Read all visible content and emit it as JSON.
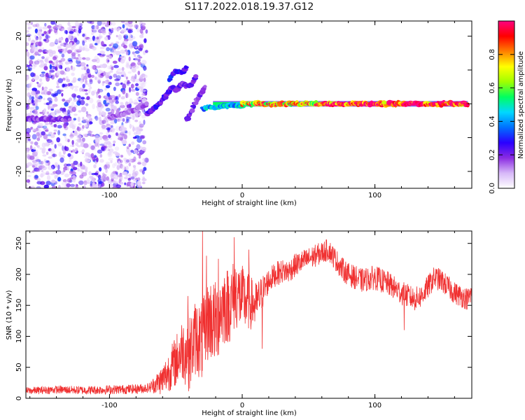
{
  "figure_title": "S117.2022.018.19.37.G12",
  "chart_data": [
    {
      "type": "heatmap",
      "xlabel": "Height of straight line (km)",
      "ylabel": "Frequency (Hz)",
      "xlim": [
        -163,
        173
      ],
      "ylim": [
        -25,
        24.5
      ],
      "xticks": [
        -100,
        0,
        100
      ],
      "yticks": [
        -20,
        -10,
        0,
        10,
        20
      ],
      "colorbar": {
        "label": "Normalized spectral amplitude",
        "range": [
          0,
          1
        ],
        "ticks": [
          "0.0",
          "0.2",
          "0.4",
          "0.6",
          "0.8"
        ],
        "colors": [
          "#ffffff",
          "#d7b8f8",
          "#8a2be2",
          "#2a00ff",
          "#0070ff",
          "#00d8ff",
          "#00ff60",
          "#a0ff00",
          "#ffff00",
          "#ff8000",
          "#ff0000",
          "#ff0080"
        ]
      },
      "carrier_line": {
        "from_km": -22,
        "to_km": 170,
        "frequency_hz": 0
      },
      "noise_region": {
        "from_km": -163,
        "to_km": -72,
        "frequency_range_hz": [
          -25,
          24.5
        ]
      },
      "tracks": [
        {
          "x": [
            -163,
            -150,
            -140,
            -130
          ],
          "y": [
            -4.5,
            -4.5,
            -4.5,
            -4.5
          ],
          "level": 0.18
        },
        {
          "x": [
            -100,
            -90,
            -80,
            -72
          ],
          "y": [
            -4,
            -3,
            -1.5,
            0
          ],
          "level": 0.15
        },
        {
          "x": [
            -72,
            -65,
            -58,
            -52
          ],
          "y": [
            -3,
            -1,
            2,
            5
          ],
          "level": 0.25
        },
        {
          "x": [
            -55,
            -50,
            -46,
            -42
          ],
          "y": [
            7,
            10,
            9,
            11
          ],
          "level": 0.28
        },
        {
          "x": [
            -50,
            -45,
            -40,
            -35
          ],
          "y": [
            4,
            6,
            5,
            8
          ],
          "level": 0.22
        },
        {
          "x": [
            -42,
            -38,
            -33,
            -28
          ],
          "y": [
            -5,
            -2,
            2,
            5
          ],
          "level": 0.2
        },
        {
          "x": [
            -30,
            -20,
            -10,
            0
          ],
          "y": [
            -1.5,
            -1,
            -0.5,
            -0.5
          ],
          "level": 0.45
        },
        {
          "x": [
            0,
            20,
            40,
            60
          ],
          "y": [
            0,
            0,
            0,
            0
          ],
          "level": 0.75
        },
        {
          "x": [
            60,
            100,
            140,
            170
          ],
          "y": [
            0,
            0,
            0,
            0
          ],
          "level": 0.95
        }
      ]
    },
    {
      "type": "line",
      "xlabel": "Height of straight line (km)",
      "ylabel": "SNR (10 * v/v)",
      "xlim": [
        -163,
        173
      ],
      "ylim": [
        0,
        270
      ],
      "xticks": [
        -100,
        0,
        100
      ],
      "yticks": [
        0,
        50,
        100,
        150,
        200,
        250
      ],
      "color": "#f03030",
      "envelope": {
        "x": [
          -163,
          -140,
          -120,
          -100,
          -80,
          -70,
          -60,
          -55,
          -50,
          -45,
          -40,
          -35,
          -30,
          -25,
          -20,
          -15,
          -10,
          -5,
          0,
          5,
          10,
          15,
          20,
          25,
          30,
          35,
          40,
          45,
          50,
          55,
          60,
          65,
          70,
          75,
          80,
          90,
          100,
          110,
          120,
          125,
          130,
          135,
          140,
          145,
          150,
          155,
          160,
          165,
          170,
          173
        ],
        "y": [
          12,
          14,
          13,
          14,
          15,
          17,
          30,
          45,
          60,
          80,
          70,
          100,
          90,
          130,
          120,
          150,
          150,
          170,
          160,
          155,
          150,
          170,
          190,
          200,
          205,
          205,
          215,
          220,
          225,
          230,
          235,
          240,
          225,
          210,
          200,
          190,
          195,
          185,
          170,
          165,
          160,
          165,
          180,
          195,
          190,
          180,
          170,
          165,
          160,
          170
        ]
      },
      "noise_amplitude": {
        "x": [
          -163,
          -70,
          -60,
          -40,
          -20,
          0,
          20,
          60,
          100,
          173
        ],
        "y": [
          6,
          8,
          25,
          60,
          70,
          55,
          20,
          18,
          20,
          18
        ]
      },
      "spikes": [
        {
          "x": -30,
          "y": 270
        },
        {
          "x": -41,
          "y": 165
        },
        {
          "x": -27,
          "y": 230
        },
        {
          "x": -18,
          "y": 225
        },
        {
          "x": -6,
          "y": 260
        },
        {
          "x": 5,
          "y": 240
        },
        {
          "x": 15,
          "y": 80
        },
        {
          "x": 122,
          "y": 110
        }
      ]
    }
  ]
}
